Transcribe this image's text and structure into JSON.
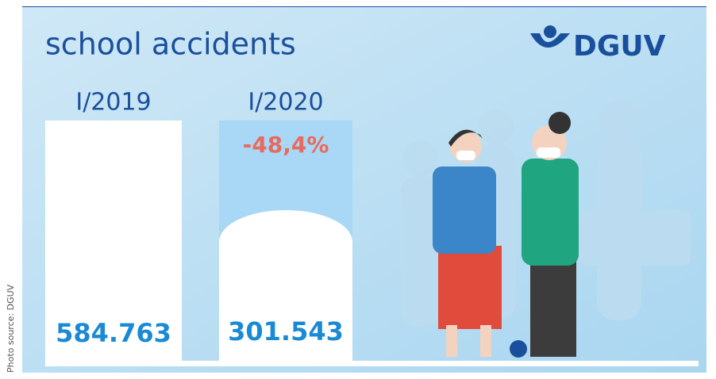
{
  "header": {
    "title": "school accidents",
    "logo": "DGUV"
  },
  "columns": [
    {
      "period": "I/2019",
      "value": "584.763"
    },
    {
      "period": "I/2020",
      "change": "-48,4%",
      "value": "301.543"
    }
  ],
  "credit": "Photo source: DGUV"
}
